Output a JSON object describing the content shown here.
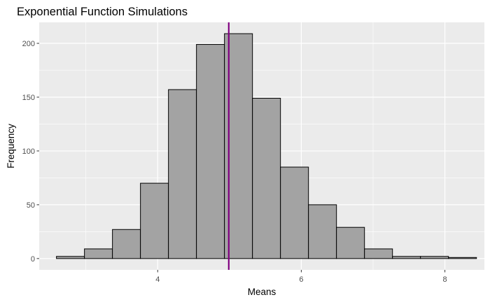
{
  "chart_data": {
    "type": "bar",
    "title": "Exponential Function Simulations",
    "xlabel": "Means",
    "ylabel": "Frequency",
    "xlim": [
      2.35,
      8.55
    ],
    "ylim": [
      -10.5,
      219.5
    ],
    "x_ticks": [
      4,
      6,
      8
    ],
    "y_ticks": [
      0,
      50,
      100,
      150,
      200
    ],
    "bin_width": 0.39,
    "bins": [
      {
        "x_start": 2.59,
        "x_end": 2.98,
        "count": 2
      },
      {
        "x_start": 2.98,
        "x_end": 3.37,
        "count": 9
      },
      {
        "x_start": 3.37,
        "x_end": 3.76,
        "count": 27
      },
      {
        "x_start": 3.76,
        "x_end": 4.15,
        "count": 70
      },
      {
        "x_start": 4.15,
        "x_end": 4.54,
        "count": 157
      },
      {
        "x_start": 4.54,
        "x_end": 4.93,
        "count": 199
      },
      {
        "x_start": 4.93,
        "x_end": 5.32,
        "count": 209
      },
      {
        "x_start": 5.32,
        "x_end": 5.71,
        "count": 149
      },
      {
        "x_start": 5.71,
        "x_end": 6.1,
        "count": 85
      },
      {
        "x_start": 6.1,
        "x_end": 6.49,
        "count": 50
      },
      {
        "x_start": 6.49,
        "x_end": 6.88,
        "count": 29
      },
      {
        "x_start": 6.88,
        "x_end": 7.27,
        "count": 9
      },
      {
        "x_start": 7.27,
        "x_end": 7.66,
        "count": 2
      },
      {
        "x_start": 7.66,
        "x_end": 8.05,
        "count": 2
      },
      {
        "x_start": 8.05,
        "x_end": 8.44,
        "count": 1
      }
    ],
    "reference_line": {
      "x": 4.99,
      "color": "#800080"
    },
    "bar_fill": "#a3a3a3",
    "bar_stroke": "#000000",
    "panel_background": "#ebebeb",
    "grid": true,
    "legend": "none"
  }
}
